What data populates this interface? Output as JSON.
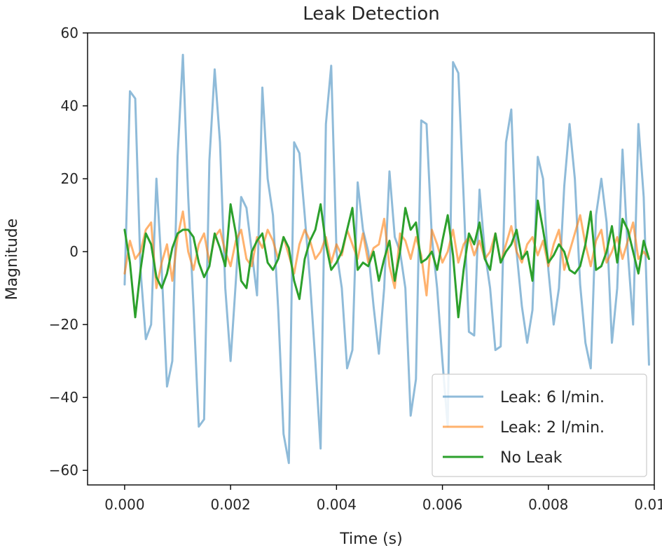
{
  "chart_data": {
    "type": "line",
    "title": "Leak Detection",
    "xlabel": "Time (s)",
    "ylabel": "Magnitude",
    "xlim": [
      -0.0007,
      0.01
    ],
    "ylim": [
      -64,
      60
    ],
    "grid": false,
    "legend_position": "lower-right",
    "xticks": [
      0.0,
      0.002,
      0.004,
      0.006,
      0.008,
      0.01
    ],
    "xtick_labels": [
      "0.000",
      "0.002",
      "0.004",
      "0.006",
      "0.008",
      "0.010"
    ],
    "yticks": [
      -60,
      -40,
      -20,
      0,
      20,
      40,
      60
    ],
    "ytick_labels": [
      "−60",
      "−40",
      "−20",
      "0",
      "20",
      "40",
      "60"
    ],
    "series": [
      {
        "name": "Leak: 6 l/min.",
        "color": "#1f77b4",
        "opacity": 0.5,
        "x": [
          0.0,
          0.0001,
          0.0002,
          0.0003,
          0.0004,
          0.0005,
          0.0006,
          0.0007,
          0.0008,
          0.0009,
          0.001,
          0.0011,
          0.0012,
          0.0013,
          0.0014,
          0.0015,
          0.0016,
          0.0017,
          0.0018,
          0.0019,
          0.002,
          0.0021,
          0.0022,
          0.0023,
          0.0024,
          0.0025,
          0.0026,
          0.0027,
          0.0028,
          0.0029,
          0.003,
          0.0031,
          0.0032,
          0.0033,
          0.0034,
          0.0035,
          0.0036,
          0.0037,
          0.0038,
          0.0039,
          0.004,
          0.0041,
          0.0042,
          0.0043,
          0.0044,
          0.0045,
          0.0046,
          0.0047,
          0.0048,
          0.0049,
          0.005,
          0.0051,
          0.0052,
          0.0053,
          0.0054,
          0.0055,
          0.0056,
          0.0057,
          0.0058,
          0.0059,
          0.006,
          0.0061,
          0.0062,
          0.0063,
          0.0064,
          0.0065,
          0.0066,
          0.0067,
          0.0068,
          0.0069,
          0.007,
          0.0071,
          0.0072,
          0.0073,
          0.0074,
          0.0075,
          0.0076,
          0.0077,
          0.0078,
          0.0079,
          0.008,
          0.0081,
          0.0082,
          0.0083,
          0.0084,
          0.0085,
          0.0086,
          0.0087,
          0.0088,
          0.0089,
          0.009,
          0.0091,
          0.0092,
          0.0093,
          0.0094,
          0.0095,
          0.0096,
          0.0097,
          0.0098,
          0.0099
        ],
        "values": [
          -9,
          44,
          42,
          -5,
          -24,
          -20,
          20,
          -5,
          -37,
          -30,
          26,
          54,
          15,
          -15,
          -48,
          -46,
          25,
          50,
          30,
          -10,
          -30,
          -8,
          15,
          12,
          0,
          -12,
          45,
          20,
          10,
          -16,
          -50,
          -58,
          30,
          27,
          10,
          -8,
          -30,
          -54,
          35,
          51,
          0,
          -10,
          -32,
          -27,
          19,
          6,
          0,
          -15,
          -28,
          -10,
          22,
          4,
          0,
          -10,
          -45,
          -35,
          36,
          35,
          4,
          -10,
          -30,
          -48,
          52,
          49,
          15,
          -22,
          -23,
          17,
          0,
          -10,
          -27,
          -26,
          30,
          39,
          0,
          -15,
          -25,
          -16,
          26,
          20,
          -5,
          -20,
          -10,
          18,
          35,
          20,
          -9,
          -25,
          -32,
          10,
          20,
          8,
          -25,
          -10,
          28,
          0,
          -20,
          35,
          15,
          -31
        ]
      },
      {
        "name": "Leak: 2 l/min.",
        "color": "#ff7f0e",
        "opacity": 0.6,
        "x": [
          0.0,
          0.0001,
          0.0002,
          0.0003,
          0.0004,
          0.0005,
          0.0006,
          0.0007,
          0.0008,
          0.0009,
          0.001,
          0.0011,
          0.0012,
          0.0013,
          0.0014,
          0.0015,
          0.0016,
          0.0017,
          0.0018,
          0.0019,
          0.002,
          0.0021,
          0.0022,
          0.0023,
          0.0024,
          0.0025,
          0.0026,
          0.0027,
          0.0028,
          0.0029,
          0.003,
          0.0031,
          0.0032,
          0.0033,
          0.0034,
          0.0035,
          0.0036,
          0.0037,
          0.0038,
          0.0039,
          0.004,
          0.0041,
          0.0042,
          0.0043,
          0.0044,
          0.0045,
          0.0046,
          0.0047,
          0.0048,
          0.0049,
          0.005,
          0.0051,
          0.0052,
          0.0053,
          0.0054,
          0.0055,
          0.0056,
          0.0057,
          0.0058,
          0.0059,
          0.006,
          0.0061,
          0.0062,
          0.0063,
          0.0064,
          0.0065,
          0.0066,
          0.0067,
          0.0068,
          0.0069,
          0.007,
          0.0071,
          0.0072,
          0.0073,
          0.0074,
          0.0075,
          0.0076,
          0.0077,
          0.0078,
          0.0079,
          0.008,
          0.0081,
          0.0082,
          0.0083,
          0.0084,
          0.0085,
          0.0086,
          0.0087,
          0.0088,
          0.0089,
          0.009,
          0.0091,
          0.0092,
          0.0093,
          0.0094,
          0.0095,
          0.0096,
          0.0097,
          0.0098,
          0.0099
        ],
        "values": [
          -6,
          3,
          -2,
          0,
          6,
          8,
          -10,
          -3,
          2,
          -8,
          4,
          11,
          0,
          -5,
          2,
          5,
          -3,
          4,
          6,
          0,
          -4,
          3,
          6,
          -2,
          -4,
          4,
          1,
          6,
          3,
          -2,
          4,
          -1,
          -6,
          2,
          6,
          3,
          -2,
          0,
          4,
          -3,
          2,
          -1,
          6,
          2,
          -2,
          5,
          -3,
          1,
          2,
          9,
          -4,
          -10,
          5,
          3,
          -2,
          4,
          -1,
          -12,
          6,
          2,
          -3,
          0,
          6,
          -3,
          2,
          4,
          -1,
          3,
          -2,
          0,
          5,
          -3,
          2,
          7,
          0,
          -3,
          2,
          4,
          -1,
          3,
          -4,
          2,
          6,
          -5,
          0,
          5,
          10,
          2,
          -4,
          3,
          6,
          -3,
          0,
          4,
          -2,
          3,
          8,
          -2,
          0,
          -2
        ]
      },
      {
        "name": "No Leak",
        "color": "#2ca02c",
        "opacity": 1.0,
        "x": [
          0.0,
          0.0001,
          0.0002,
          0.0003,
          0.0004,
          0.0005,
          0.0006,
          0.0007,
          0.0008,
          0.0009,
          0.001,
          0.0011,
          0.0012,
          0.0013,
          0.0014,
          0.0015,
          0.0016,
          0.0017,
          0.0018,
          0.0019,
          0.002,
          0.0021,
          0.0022,
          0.0023,
          0.0024,
          0.0025,
          0.0026,
          0.0027,
          0.0028,
          0.0029,
          0.003,
          0.0031,
          0.0032,
          0.0033,
          0.0034,
          0.0035,
          0.0036,
          0.0037,
          0.0038,
          0.0039,
          0.004,
          0.0041,
          0.0042,
          0.0043,
          0.0044,
          0.0045,
          0.0046,
          0.0047,
          0.0048,
          0.0049,
          0.005,
          0.0051,
          0.0052,
          0.0053,
          0.0054,
          0.0055,
          0.0056,
          0.0057,
          0.0058,
          0.0059,
          0.006,
          0.0061,
          0.0062,
          0.0063,
          0.0064,
          0.0065,
          0.0066,
          0.0067,
          0.0068,
          0.0069,
          0.007,
          0.0071,
          0.0072,
          0.0073,
          0.0074,
          0.0075,
          0.0076,
          0.0077,
          0.0078,
          0.0079,
          0.008,
          0.0081,
          0.0082,
          0.0083,
          0.0084,
          0.0085,
          0.0086,
          0.0087,
          0.0088,
          0.0089,
          0.009,
          0.0091,
          0.0092,
          0.0093,
          0.0094,
          0.0095,
          0.0096,
          0.0097,
          0.0098,
          0.0099
        ],
        "values": [
          6,
          -3,
          -18,
          -5,
          5,
          2,
          -7,
          -10,
          -6,
          1,
          5,
          6,
          6,
          4,
          -3,
          -7,
          -4,
          5,
          1,
          -4,
          13,
          5,
          -8,
          -10,
          0,
          3,
          5,
          -3,
          -5,
          -2,
          4,
          1,
          -8,
          -13,
          -2,
          3,
          6,
          13,
          2,
          -5,
          -3,
          0,
          6,
          12,
          -5,
          -3,
          -4,
          0,
          -8,
          -2,
          3,
          -8,
          0,
          12,
          6,
          8,
          -3,
          -2,
          0,
          -5,
          3,
          10,
          -1,
          -18,
          -5,
          5,
          2,
          8,
          -2,
          -5,
          5,
          -3,
          0,
          2,
          6,
          -2,
          0,
          -8,
          14,
          6,
          -3,
          -1,
          2,
          0,
          -5,
          -6,
          -4,
          2,
          11,
          -5,
          -4,
          0,
          7,
          -3,
          9,
          6,
          0,
          -6,
          3,
          -2
        ]
      }
    ]
  }
}
